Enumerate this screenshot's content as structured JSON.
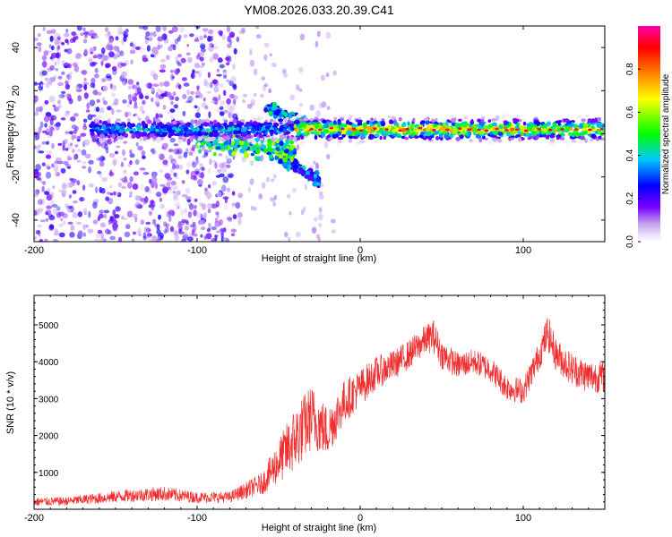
{
  "figure": {
    "title": "YM08.2026.033.20.39.C41"
  },
  "chart_data": [
    {
      "type": "heatmap",
      "title": "YM08.2026.033.20.39.C41",
      "xlabel": "Height of straight line (km)",
      "ylabel": "Frequency (Hz)",
      "xlim": [
        -200,
        150
      ],
      "ylim": [
        -50,
        50
      ],
      "xticks": [
        -200,
        -100,
        0,
        100
      ],
      "yticks": [
        -40,
        -20,
        0,
        20,
        40
      ],
      "colorbar": {
        "label": "Normalized spectral amplitude",
        "range": [
          0.0,
          1.0
        ],
        "ticks": [
          0.0,
          0.2,
          0.4,
          0.6,
          0.8
        ],
        "tick_labels": [
          "0.0",
          "0.2",
          "0.4",
          "0.6",
          "0.8"
        ],
        "colormap": [
          "#ffffff",
          "#c8a8f0",
          "#7a00ff",
          "#0000ff",
          "#00c8ff",
          "#00ff00",
          "#ffff00",
          "#ff8000",
          "#ff0000",
          "#ff00aa"
        ]
      },
      "features": [
        {
          "name": "main_band",
          "x_range": [
            -165,
            150
          ],
          "freq_center": 2,
          "freq_halfwidth": 4,
          "amplitude": 0.75
        },
        {
          "name": "descending_branch",
          "x_range": [
            -100,
            -40
          ],
          "freq_start": -3,
          "freq_end": -8,
          "amplitude": 0.45
        },
        {
          "name": "lower_branch",
          "x_range": [
            -50,
            -25
          ],
          "freq_start": -10,
          "freq_end": -22,
          "amplitude": 0.3
        },
        {
          "name": "upper_branch",
          "x_range": [
            -58,
            -25
          ],
          "freq_start": 12,
          "freq_end": 3,
          "amplitude": 0.35
        },
        {
          "name": "noise_region",
          "x_range": [
            -200,
            -75
          ],
          "freq_range": [
            -50,
            50
          ],
          "amplitude": 0.15
        }
      ]
    },
    {
      "type": "line",
      "xlabel": "Height of straight line (km)",
      "ylabel": "SNR (10 * v/v)",
      "xlim": [
        -200,
        150
      ],
      "ylim": [
        0,
        5800
      ],
      "xticks": [
        -200,
        -100,
        0,
        100
      ],
      "yticks": [
        1000,
        2000,
        3000,
        4000,
        5000
      ],
      "color": "#f03030",
      "series": [
        {
          "name": "SNR",
          "x": [
            -200,
            -180,
            -160,
            -140,
            -120,
            -100,
            -80,
            -60,
            -50,
            -40,
            -30,
            -20,
            -10,
            0,
            10,
            20,
            30,
            40,
            45,
            50,
            60,
            70,
            80,
            90,
            100,
            110,
            115,
            120,
            130,
            140,
            150
          ],
          "values": [
            200,
            220,
            300,
            380,
            420,
            320,
            330,
            700,
            1300,
            1900,
            2500,
            2100,
            2900,
            3300,
            3700,
            3900,
            4200,
            4600,
            4700,
            4200,
            3900,
            4000,
            3800,
            3300,
            3200,
            4200,
            4800,
            4200,
            3800,
            3600,
            3600
          ],
          "noise_amplitude": [
            120,
            120,
            150,
            180,
            200,
            150,
            150,
            300,
            600,
            900,
            900,
            700,
            600,
            500,
            450,
            400,
            400,
            400,
            450,
            400,
            350,
            350,
            350,
            350,
            350,
            400,
            500,
            450,
            450,
            450,
            450
          ]
        }
      ]
    }
  ]
}
